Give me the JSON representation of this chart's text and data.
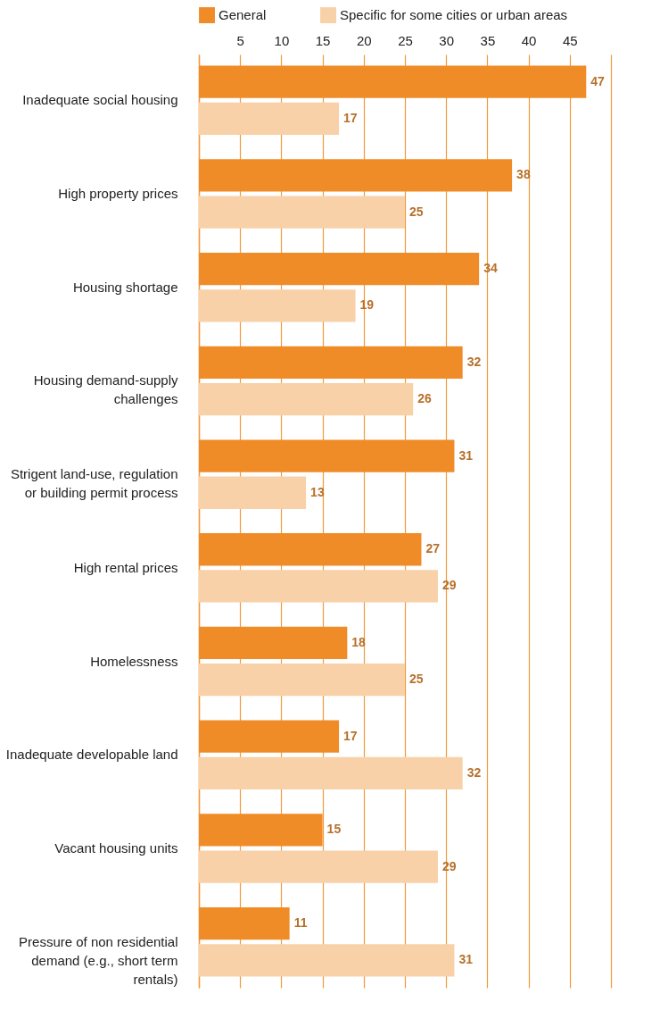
{
  "chart_data": {
    "type": "bar",
    "orientation": "horizontal",
    "categories": [
      "Inadequate social housing",
      "High property prices",
      "Housing shortage",
      "Housing demand-supply challenges",
      "Strigent land-use, regulation or building permit process",
      "High rental prices",
      "Homelessness",
      "Inadequate developable land",
      "Vacant housing units",
      "Pressure of non residential demand (e.g., short term rentals)"
    ],
    "series": [
      {
        "name": "General",
        "color": "#f08c28",
        "values": [
          47,
          38,
          34,
          32,
          31,
          27,
          18,
          17,
          15,
          11
        ]
      },
      {
        "name": "Specific for some cities or urban areas",
        "color": "#f8d1a9",
        "values": [
          17,
          25,
          19,
          26,
          13,
          29,
          25,
          32,
          29,
          31
        ]
      }
    ],
    "xlim": [
      0,
      50
    ],
    "xticks": [
      {
        "value": 0,
        "label": null
      },
      5,
      10,
      15,
      20,
      25,
      30,
      35,
      40,
      45,
      {
        "value": 50,
        "label": null
      }
    ],
    "grid": "x",
    "legend": "top",
    "data_labels": true
  }
}
